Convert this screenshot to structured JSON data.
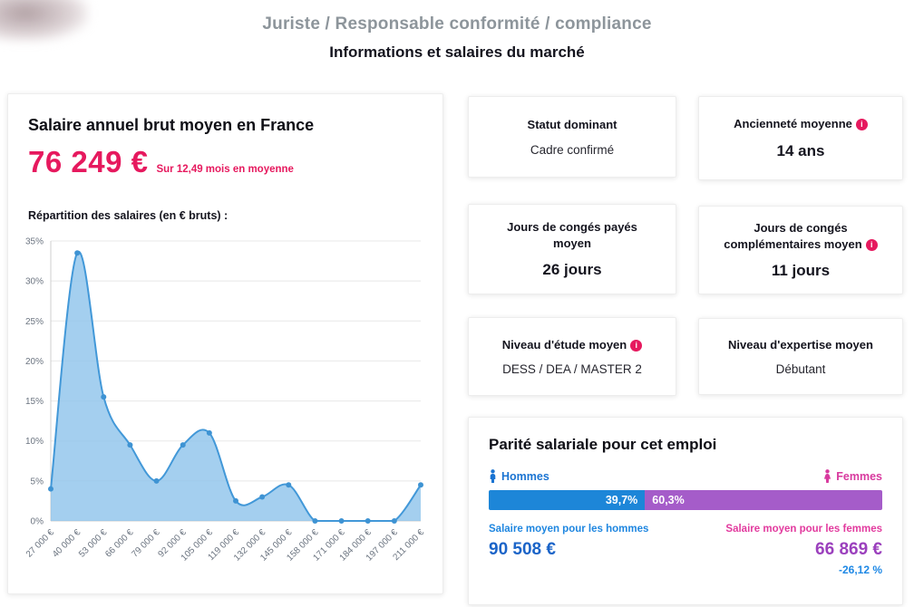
{
  "header": {
    "title": "Juriste / Responsable conformité / compliance",
    "subtitle": "Informations et salaires du marché"
  },
  "salary_card": {
    "title": "Salaire annuel brut moyen en France",
    "amount": "76 249 €",
    "amount_note": "Sur 12,49 mois en moyenne",
    "distribution_label": "Répartition des salaires (en € bruts) :"
  },
  "chart_data": {
    "type": "area",
    "title": "Répartition des salaires (en € bruts)",
    "categories": [
      "27 000 €",
      "40 000 €",
      "53 000 €",
      "66 000 €",
      "79 000 €",
      "92 000 €",
      "105 000 €",
      "119 000 €",
      "132 000 €",
      "145 000 €",
      "158 000 €",
      "171 000 €",
      "184 000 €",
      "197 000 €",
      "211 000 €"
    ],
    "values": [
      4,
      33.5,
      15.5,
      9.5,
      5,
      9.5,
      11,
      2.5,
      3,
      4.5,
      0,
      0,
      0,
      0,
      4.5
    ],
    "xlabel": "",
    "ylabel": "",
    "ylim": [
      0,
      35
    ],
    "tick_step": 5,
    "y_tick_labels": [
      "0%",
      "5%",
      "10%",
      "15%",
      "20%",
      "25%",
      "30%",
      "35%"
    ],
    "grid": true,
    "legend_position": "none",
    "line_color": "#4298d8",
    "fill_color": "#8dc3eb",
    "point_color": "#3e93d3"
  },
  "stat_cards": [
    {
      "label": "Statut dominant",
      "value": "Cadre confirmé",
      "info": false
    },
    {
      "label": "Ancienneté moyenne",
      "value": "14 ans",
      "info": true
    },
    {
      "label": "Jours de congés payés moyen",
      "value": "26 jours",
      "info": false
    },
    {
      "label": "Jours de congés complémentaires moyen",
      "value": "11 jours",
      "info": true
    },
    {
      "label": "Niveau d'étude moyen",
      "value": "DESS / DEA / MASTER 2",
      "info": true
    },
    {
      "label": "Niveau d'expertise moyen",
      "value": "Débutant",
      "info": false
    }
  ],
  "parity_card": {
    "title": "Parité salariale pour cet emploi",
    "men_label": "Hommes",
    "women_label": "Femmes",
    "men_pct_label": "39,7%",
    "women_pct_label": "60,3%",
    "men_pct_value": 39.7,
    "women_pct_value": 60.3,
    "men_salary_label": "Salaire moyen pour les hommes",
    "men_salary": "90 508 €",
    "women_salary_label": "Salaire moyen pour les femmes",
    "women_salary": "66 869 €",
    "gap": "-26,12 %"
  },
  "icons": {
    "info_glyph": "i"
  },
  "colors": {
    "accent_pink": "#e6195e",
    "men_blue": "#1b74d2",
    "women_pink": "#d8399e",
    "women_purple": "#9b40bd",
    "bar_blue": "#1d86d8",
    "bar_purple": "#a55cc9"
  }
}
